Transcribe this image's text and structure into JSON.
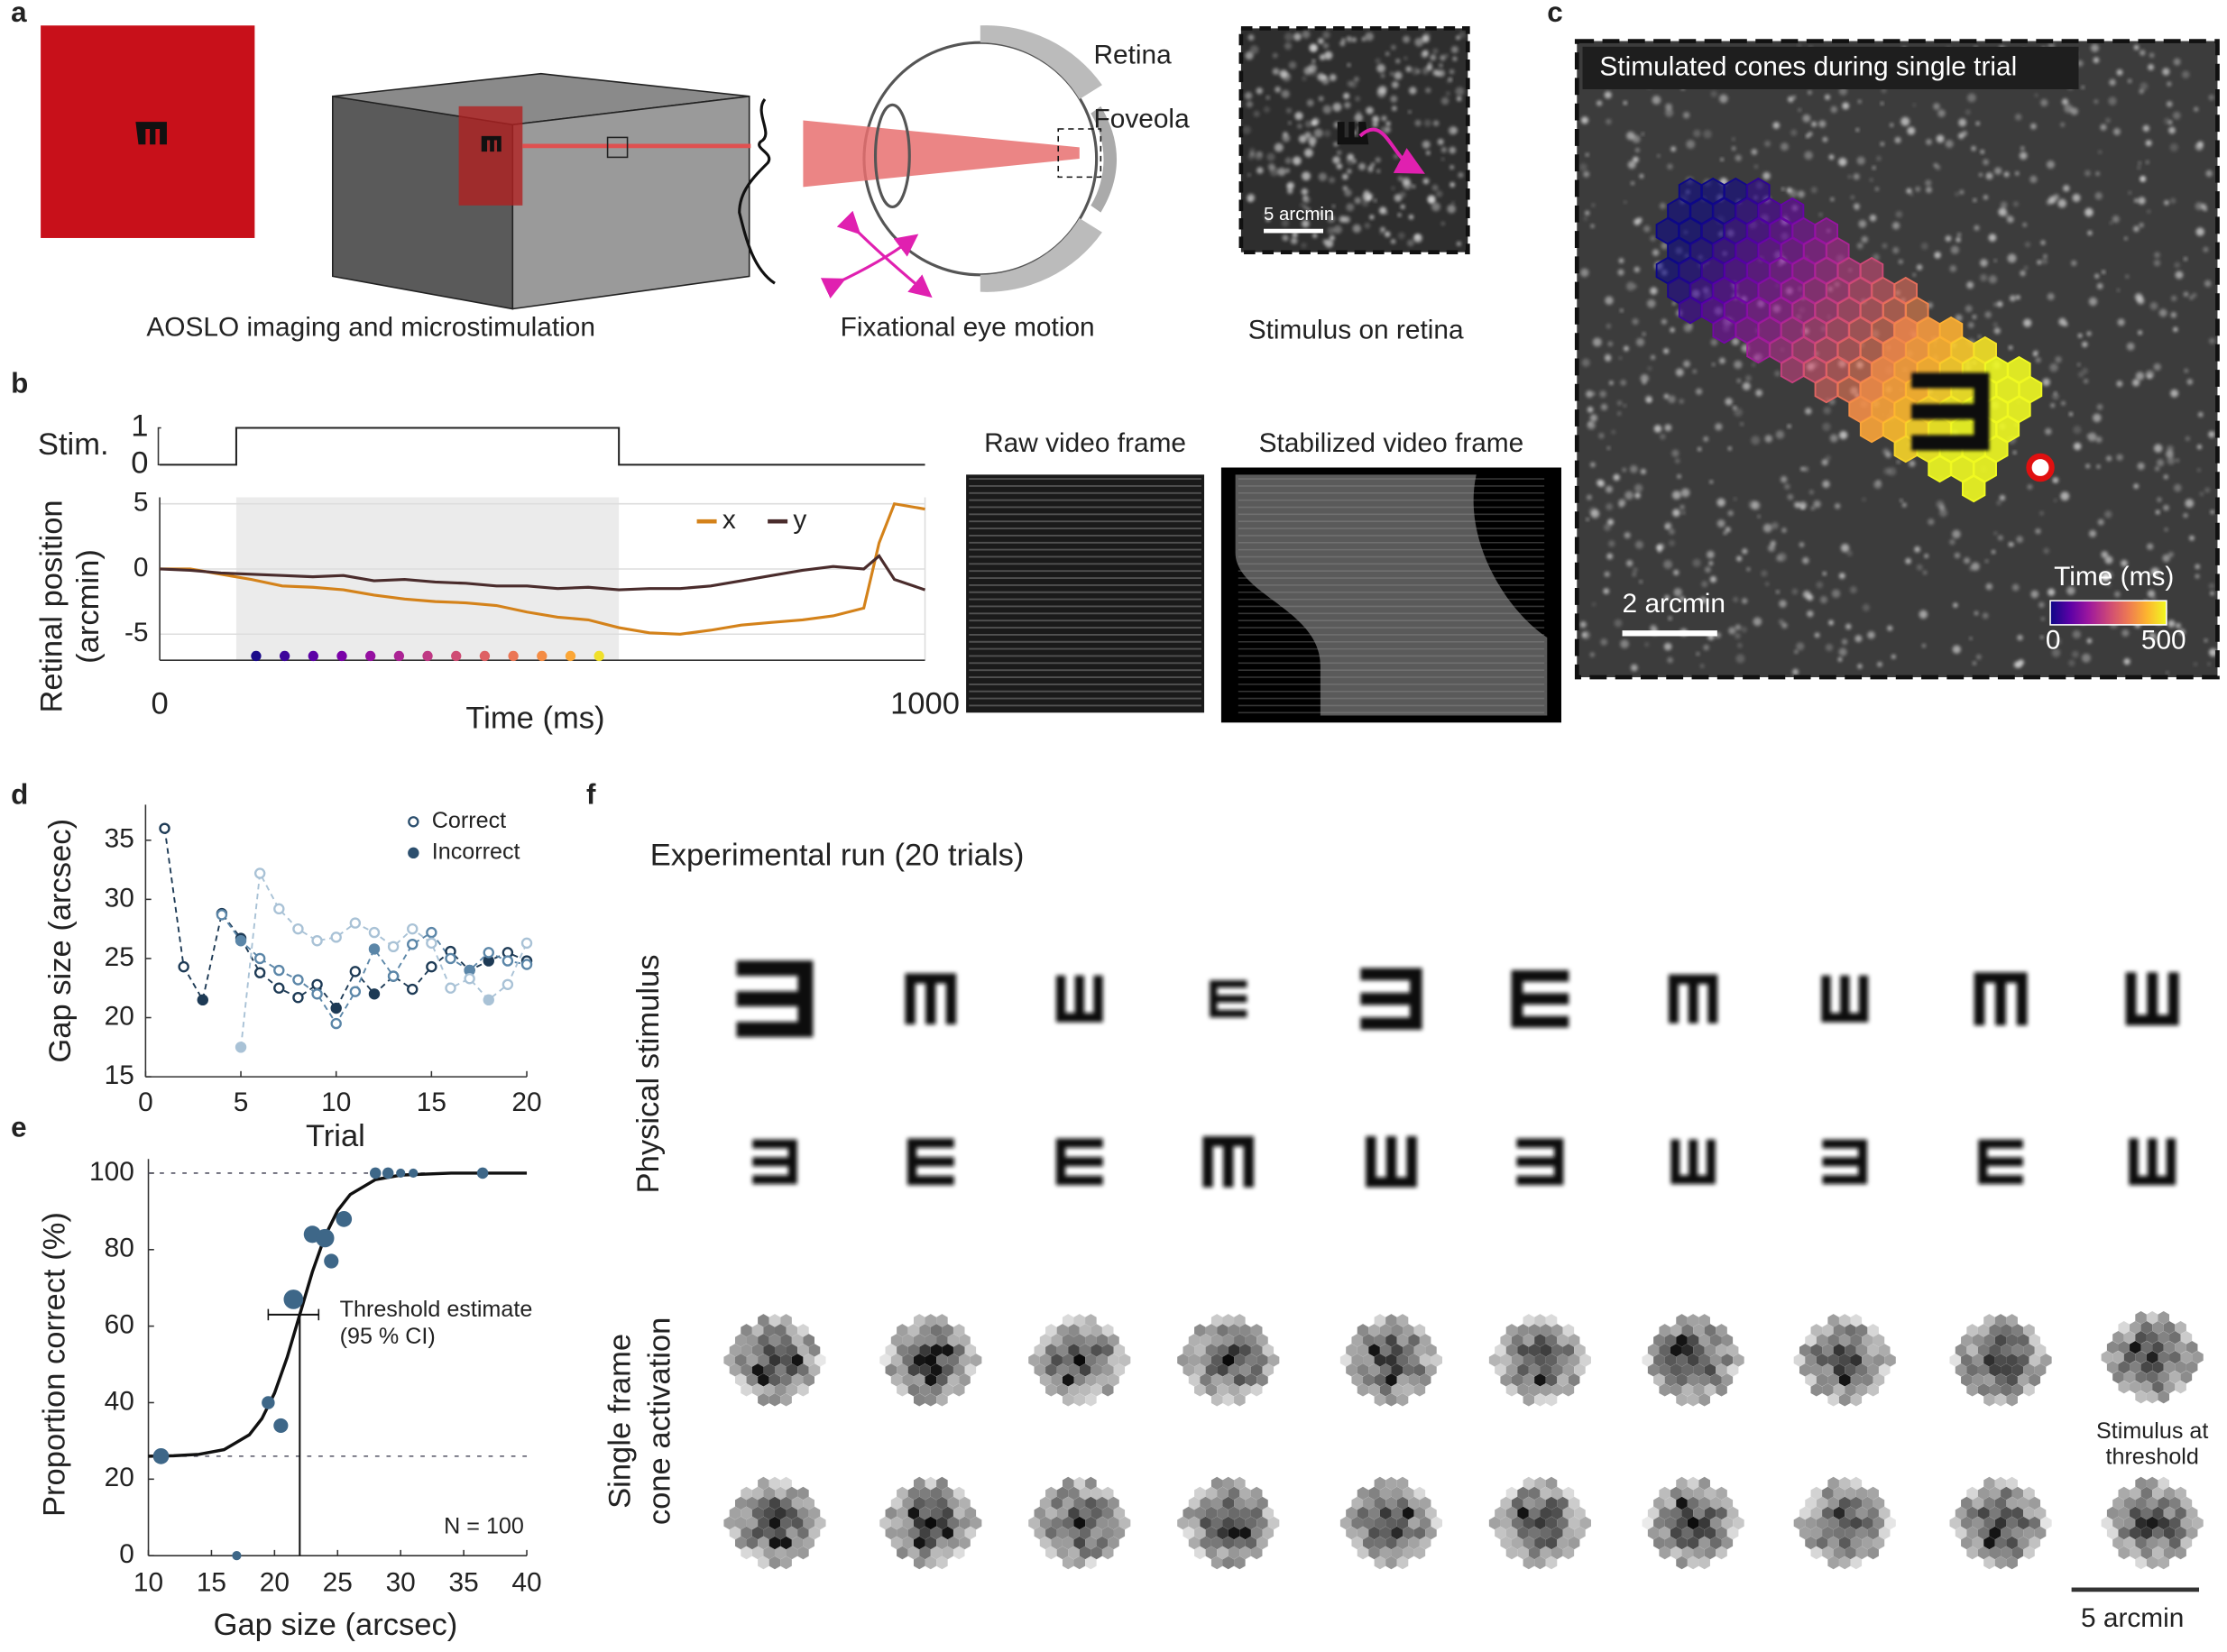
{
  "panels": {
    "a": {
      "label": "a",
      "captions": [
        "AOSLO imaging and microstimulation",
        "Fixational eye motion",
        "Stimulus on retina"
      ],
      "eye_labels": [
        "Retina",
        "Foveola"
      ],
      "scale_bar": "5 arcmin"
    },
    "b": {
      "label": "b",
      "stim": {
        "label": "Stim.",
        "yticks": [
          0,
          1
        ],
        "on": [
          100,
          600
        ]
      },
      "chart_data": {
        "type": "line",
        "ylabel": [
          "Retinal position",
          "(arcmin)"
        ],
        "xlabel": "Time (ms)",
        "x": [
          0,
          40,
          80,
          120,
          160,
          200,
          240,
          280,
          320,
          360,
          400,
          440,
          480,
          520,
          560,
          600,
          640,
          680,
          720,
          760,
          800,
          840,
          880,
          920,
          940,
          960,
          1000
        ],
        "series": [
          {
            "name": "x",
            "color": "#d4821a",
            "values": [
              0,
              0,
              -0.4,
              -0.8,
              -1.3,
              -1.4,
              -1.6,
              -2,
              -2.3,
              -2.5,
              -2.6,
              -2.8,
              -3.3,
              -3.7,
              -3.9,
              -4.5,
              -4.9,
              -5,
              -4.7,
              -4.3,
              -4.1,
              -3.9,
              -3.6,
              -3,
              2,
              5,
              4.6
            ]
          },
          {
            "name": "y",
            "color": "#4a2c2c",
            "values": [
              0,
              -0.1,
              -0.3,
              -0.4,
              -0.5,
              -0.6,
              -0.5,
              -0.9,
              -0.8,
              -1,
              -1.1,
              -1.3,
              -1.3,
              -1.5,
              -1.4,
              -1.6,
              -1.5,
              -1.5,
              -1.3,
              -0.9,
              -0.5,
              -0.1,
              0.2,
              0,
              1,
              -0.8,
              -1.6
            ]
          }
        ],
        "xlim": [
          0,
          1000
        ],
        "ylim": [
          -7,
          5.5
        ],
        "xticks": [
          0,
          1000
        ],
        "yticks": [
          -5,
          0,
          5
        ],
        "grid": true,
        "stim_colors": [
          "#1a0a8a",
          "#3d049b",
          "#5c01a6",
          "#7a02a8",
          "#9511a1",
          "#ab2494",
          "#bf3984",
          "#cf4c74",
          "#de6164",
          "#eb7655",
          "#f48c44",
          "#fba636",
          "#f0e02a"
        ]
      },
      "frames": [
        "Raw video frame",
        "Stabilized video frame"
      ]
    },
    "c": {
      "label": "c",
      "title": "Stimulated cones during single trial",
      "scale_bar": "2 arcmin",
      "colorbar": {
        "label": "Time (ms)",
        "ticks": [
          0,
          500
        ]
      }
    },
    "d": {
      "label": "d",
      "chart_data": {
        "type": "scatter",
        "xlabel": "Trial",
        "ylabel": "Gap size (arcsec)",
        "xlim": [
          0,
          20
        ],
        "ylim": [
          15,
          38
        ],
        "xticks": [
          0,
          5,
          10,
          15,
          20
        ],
        "yticks": [
          15,
          20,
          25,
          30,
          35
        ],
        "legend": [
          "Correct",
          "Incorrect"
        ],
        "legend_color": "#2c4f6e",
        "staircases": [
          {
            "color": "#1d3a55",
            "x": [
              1,
              2,
              3,
              4,
              5,
              6,
              7,
              8,
              9,
              10,
              11,
              12,
              13,
              14,
              15,
              16,
              17,
              18,
              19,
              20
            ],
            "values": [
              36,
              24.3,
              21.5,
              28.8,
              26.7,
              23.8,
              22.5,
              21.7,
              22.8,
              20.8,
              23.9,
              22,
              23.5,
              22.4,
              24.3,
              25.6,
              24,
              24.8,
              25.5,
              24.8
            ],
            "correct": [
              true,
              true,
              false,
              true,
              false,
              true,
              true,
              true,
              true,
              false,
              true,
              false,
              true,
              true,
              true,
              true,
              true,
              false,
              true,
              true
            ]
          },
          {
            "color": "#5b86a8",
            "x": [
              4,
              5,
              6,
              7,
              8,
              9,
              10,
              11,
              12,
              13,
              14,
              15,
              16,
              17,
              18,
              19,
              20
            ],
            "values": [
              28.7,
              26.5,
              25,
              24,
              23.2,
              22,
              19.5,
              22.2,
              25.8,
              23.5,
              26.2,
              27.2,
              25,
              24,
              25.5,
              24.8,
              24.5
            ],
            "correct": [
              true,
              false,
              true,
              true,
              true,
              true,
              true,
              true,
              false,
              true,
              true,
              true,
              true,
              false,
              true,
              true,
              true
            ]
          },
          {
            "color": "#a9c2d6",
            "x": [
              5,
              6,
              7,
              8,
              9,
              10,
              11,
              12,
              13,
              14,
              15,
              16,
              17,
              18,
              19,
              20
            ],
            "values": [
              17.5,
              32.2,
              29.2,
              27.5,
              26.5,
              26.8,
              28,
              27.2,
              26,
              27.5,
              26.3,
              22.5,
              23.3,
              21.5,
              22.8,
              26.3
            ],
            "correct": [
              false,
              true,
              true,
              true,
              true,
              true,
              true,
              true,
              true,
              true,
              true,
              true,
              true,
              false,
              true,
              true
            ]
          }
        ]
      }
    },
    "e": {
      "label": "e",
      "chart_data": {
        "type": "bubble",
        "xlabel": "Gap size (arcsec)",
        "ylabel": "Proportion correct (%)",
        "xlim": [
          10,
          40
        ],
        "ylim": [
          0,
          100
        ],
        "xticks": [
          10,
          15,
          20,
          25,
          30,
          35,
          40
        ],
        "yticks": [
          0,
          20,
          40,
          60,
          80,
          100
        ],
        "color": "#3e6788",
        "x": [
          11,
          17,
          19.5,
          20.5,
          21.5,
          23,
          24,
          24.5,
          25.5,
          28,
          29,
          30,
          31,
          36.5
        ],
        "values": [
          26,
          0,
          40,
          34,
          67,
          84,
          83,
          77,
          88,
          100,
          100,
          100,
          100,
          100
        ],
        "sizes": [
          6,
          2,
          4,
          5,
          9,
          7,
          8,
          5,
          6,
          3,
          3,
          2,
          2,
          3
        ],
        "fit": {
          "x": [
            10,
            12,
            14,
            16,
            18,
            19,
            20,
            21,
            22,
            23,
            24,
            25,
            26,
            28,
            30,
            34,
            40
          ],
          "values": [
            26,
            26.1,
            26.5,
            27.7,
            31.6,
            35.8,
            42.5,
            51.8,
            63,
            74.2,
            83.5,
            90.2,
            94.4,
            98.3,
            99.5,
            100,
            100
          ]
        },
        "hlines": [
          26,
          100
        ],
        "threshold": {
          "value": 22,
          "ci": [
            19.5,
            23.5
          ],
          "level": 63
        },
        "annotation": [
          "Threshold estimate",
          "(95 % CI)"
        ],
        "n_label": "N = 100"
      }
    },
    "f": {
      "label": "f",
      "title": "Experimental run (20 trials)",
      "row_labels": [
        "Physical stimulus",
        "Single frame",
        "cone activation"
      ],
      "annotation": [
        "Stimulus at",
        "threshold"
      ],
      "scale_bar": "5 arcmin",
      "rows": [
        {
          "orientations": [
            "left",
            "down",
            "up",
            "right",
            "left",
            "right",
            "down",
            "up",
            "down",
            "up"
          ],
          "gaps": [
            36,
            24,
            22,
            17.5,
            29,
            27,
            23,
            22,
            25,
            25
          ]
        },
        {
          "orientations": [
            "left",
            "right",
            "right",
            "down",
            "up",
            "left",
            "up",
            "left",
            "right",
            "up"
          ],
          "gaps": [
            21,
            22,
            22,
            24,
            24,
            22,
            21,
            21,
            21,
            22
          ]
        }
      ]
    }
  }
}
